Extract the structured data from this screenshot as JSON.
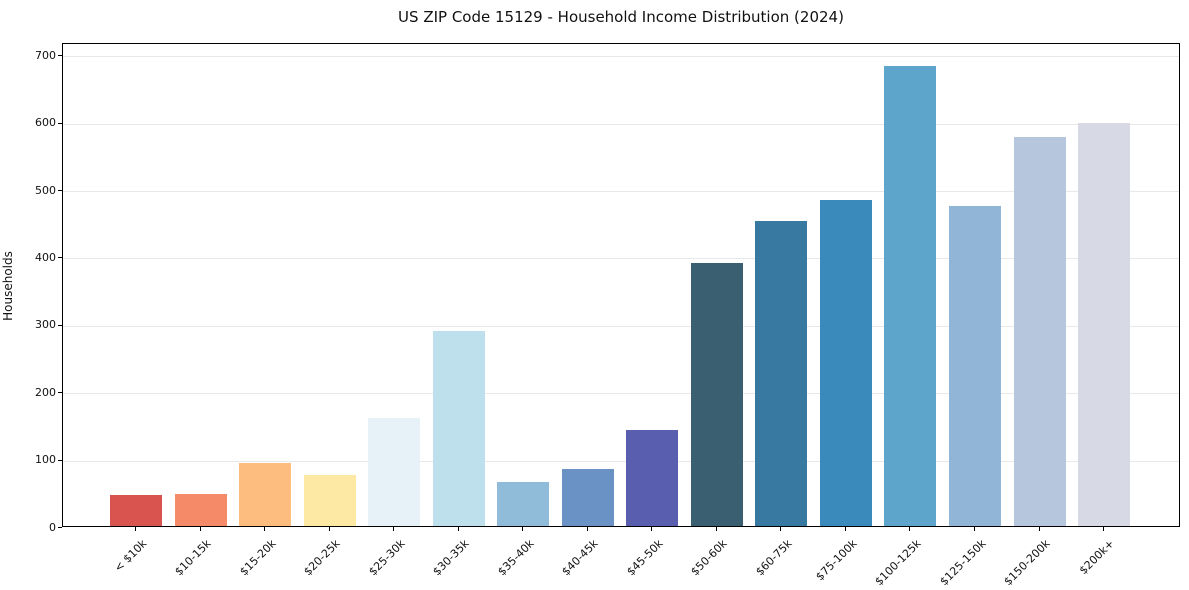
{
  "chart_data": {
    "type": "bar",
    "title": "US ZIP Code 15129 - Household Income Distribution (2024)",
    "xlabel": "",
    "ylabel": "Households",
    "ylim": [
      0,
      718
    ],
    "yticks": [
      0,
      100,
      200,
      300,
      400,
      500,
      600,
      700
    ],
    "grid": "horizontal",
    "legend": "none",
    "categories": [
      "< $10k",
      "$10-15k",
      "$15-20k",
      "$20-25k",
      "$25-30k",
      "$30-35k",
      "$35-40k",
      "$40-45k",
      "$45-50k",
      "$50-60k",
      "$60-75k",
      "$75-100k",
      "$100-125k",
      "$125-150k",
      "$150-200k",
      "$200k+"
    ],
    "values": [
      46,
      48,
      94,
      76,
      160,
      290,
      66,
      85,
      143,
      390,
      452,
      483,
      682,
      475,
      577,
      598
    ],
    "bar_colors": [
      "#d9534f",
      "#f58a68",
      "#fcbd7e",
      "#fde8a4",
      "#e7f2f8",
      "#bedfec",
      "#90bbd9",
      "#6a92c5",
      "#5a5eae",
      "#3a5f71",
      "#3779a0",
      "#3a8abc",
      "#5da5cb",
      "#90b5d7",
      "#b6c7dd",
      "#d7dae5"
    ],
    "axis_color": "#000000",
    "grid_color": "#e8e8e8",
    "background_color": "#ffffff"
  }
}
